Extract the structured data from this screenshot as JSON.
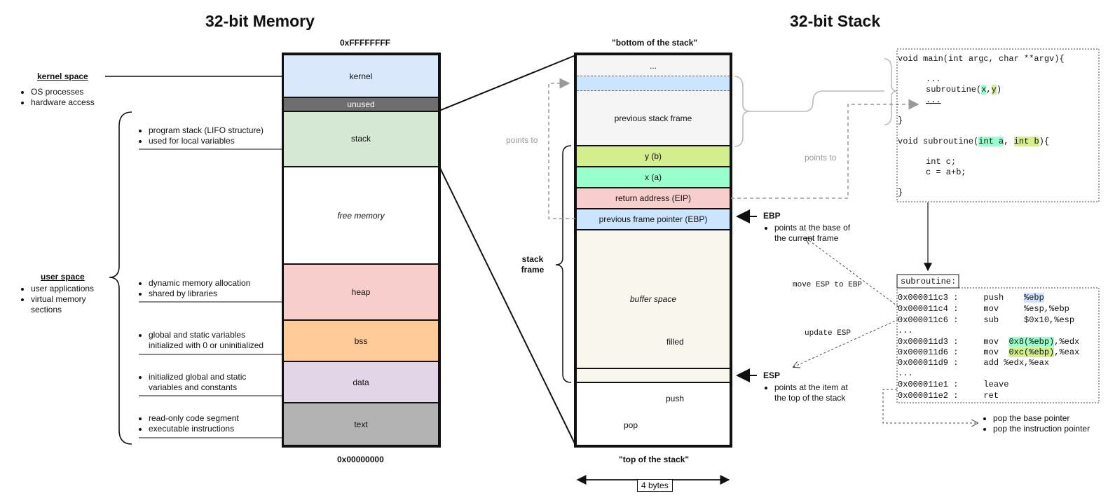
{
  "memory": {
    "title": "32-bit Memory",
    "top_address": "0xFFFFFFFF",
    "bottom_address": "0x00000000",
    "segments": {
      "kernel": "kernel",
      "unused": "unused",
      "stack": "stack",
      "free": "free memory",
      "heap": "heap",
      "bss": "bss",
      "data": "data",
      "text": "text"
    },
    "kernel_space": {
      "label": "kernel space",
      "items": [
        "OS processes",
        "hardware access"
      ]
    },
    "user_space": {
      "label": "user space",
      "items": [
        "user applications",
        "virtual memory sections"
      ]
    },
    "notes": {
      "stack": [
        "program stack (LIFO structure)",
        "used for local variables"
      ],
      "heap": [
        "dynamic memory allocation",
        "shared by libraries"
      ],
      "bss": [
        "global and static variables initialized with 0 or uninitialized"
      ],
      "data": [
        "initialized global and static variables and constants"
      ],
      "text": [
        "read-only code segment",
        "executable instructions"
      ]
    }
  },
  "stack": {
    "title": "32-bit Stack",
    "bottom_label": "\"bottom of the stack\"",
    "top_label": "\"top of the stack\"",
    "width_label": "4 bytes",
    "frames": {
      "ellipsis": "...",
      "previous_frame": "previous stack frame",
      "y": "y (b)",
      "x": "x (a)",
      "ret": "return address (EIP)",
      "prev_ptr": "previous frame pointer (EBP)",
      "buffer": "buffer space",
      "filled": "filled",
      "push": "push",
      "pop": "pop"
    },
    "stack_frame_label": "stack frame",
    "points_to_left": "points to",
    "points_to_right": "points to",
    "ebp": {
      "label": "EBP",
      "desc": "points at the base of the current frame"
    },
    "esp": {
      "label": "ESP",
      "desc": "points at the item at the top of the stack"
    },
    "move_esp": "move ESP to EBP",
    "update_esp": "update ESP"
  },
  "code": {
    "main_sig": "void main(int argc, char **argv){",
    "main_dots": "...",
    "main_call": "subroutine(x,y)",
    "main_dots2": "...",
    "close1": "}",
    "sub_sig": "void subroutine(int a, int b){",
    "sub_l1": "int c;",
    "sub_l2": "c = a+b;",
    "close2": "}"
  },
  "asm": {
    "label": "subroutine:",
    "lines": [
      "0x000011c3 :     push    %ebp",
      "0x000011c4 :     mov     %esp,%ebp",
      "0x000011c6 :     sub     $0x10,%esp",
      "...",
      "0x000011d3 :     mov  0x8(%ebp),%edx",
      "0x000011d6 :     mov  0xc(%ebp),%eax",
      "0x000011d9 :     add %edx,%eax",
      "...",
      "0x000011e1 :     leave",
      "0x000011e2 :     ret"
    ],
    "ret_notes": [
      "pop the base pointer",
      "pop the instruction pointer"
    ]
  }
}
